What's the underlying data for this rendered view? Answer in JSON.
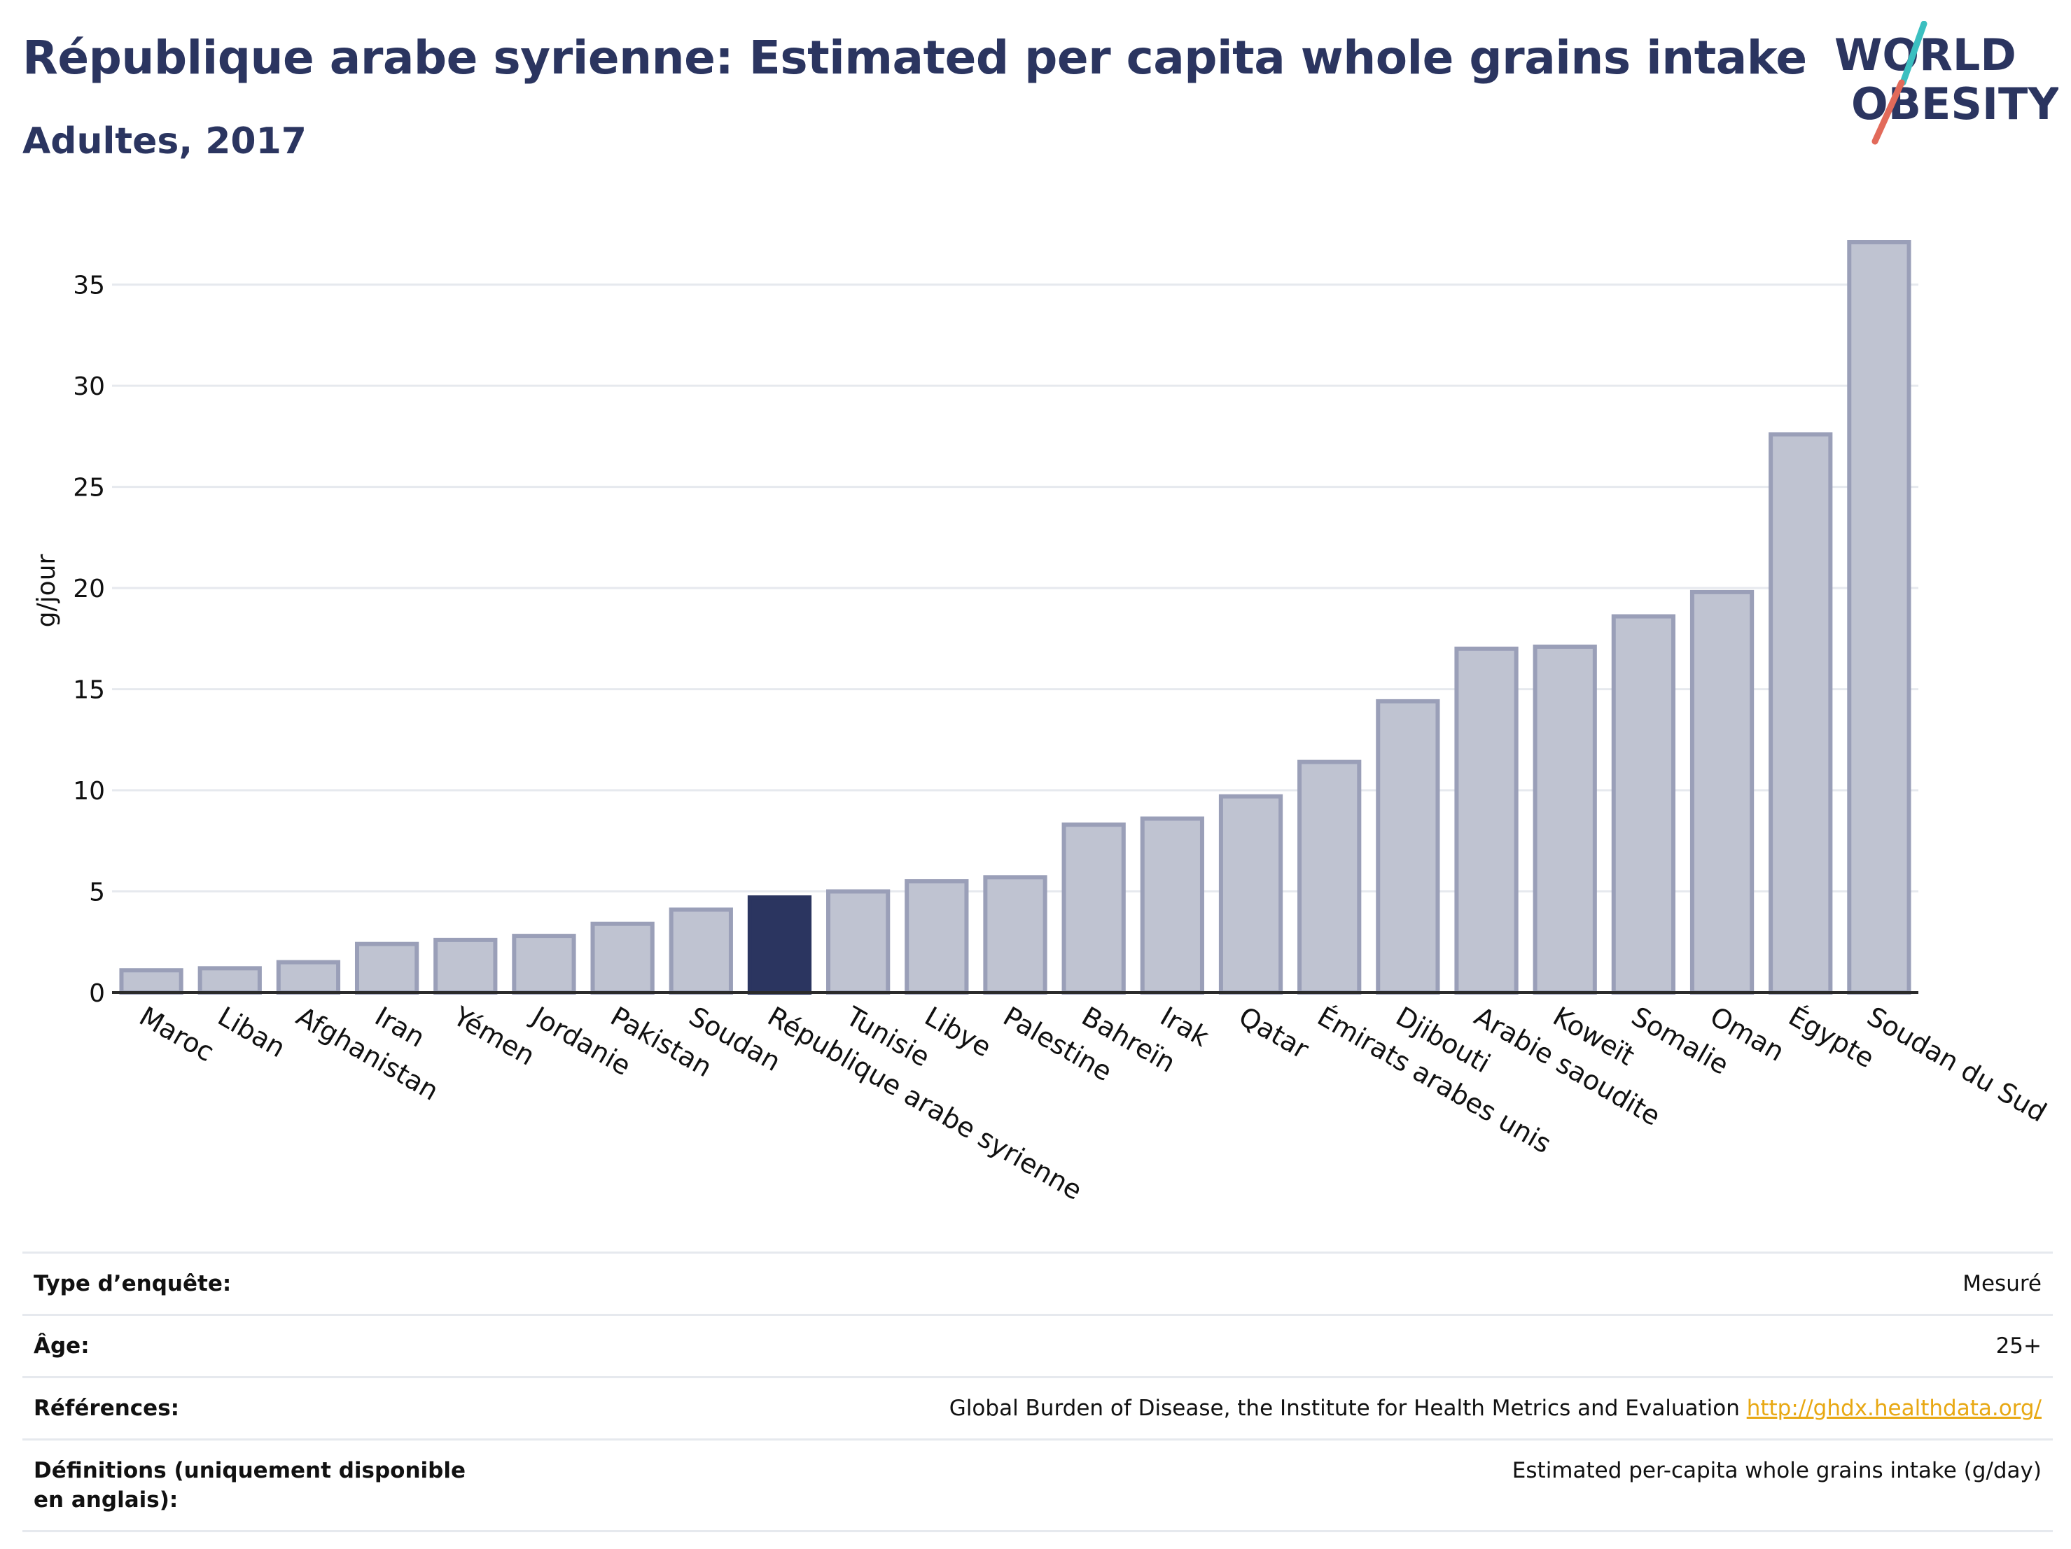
{
  "header": {
    "title": "République arabe syrienne: Estimated per capita whole grains intake",
    "subtitle": "Adultes, 2017"
  },
  "logo": {
    "line1": "WORLD",
    "line2": "OBESITY"
  },
  "colors": {
    "highlight": "#2b3560",
    "bar_fill": "#bfc3d1",
    "bar_stroke": "#9a9fb8",
    "grid": "#e6e9ee",
    "logo_text": "#2b3560",
    "logo_slash_teal": "#3bbfc0",
    "logo_slash_red": "#e26a5a",
    "link": "#e8a813"
  },
  "chart_data": {
    "type": "bar",
    "ylabel": "g/jour",
    "ylim": [
      0,
      38
    ],
    "yticks": [
      0,
      5,
      10,
      15,
      20,
      25,
      30,
      35
    ],
    "grid": true,
    "highlight": "République arabe syrienne",
    "categories": [
      "Maroc",
      "Liban",
      "Afghanistan",
      "Iran",
      "Yémen",
      "Jordanie",
      "Pakistan",
      "Soudan",
      "République arabe syrienne",
      "Tunisie",
      "Libye",
      "Palestine",
      "Bahreïn",
      "Irak",
      "Qatar",
      "Émirats arabes unis",
      "Djibouti",
      "Arabie saoudite",
      "Koweït",
      "Somalie",
      "Oman",
      "Égypte",
      "Soudan du Sud"
    ],
    "values": [
      1.1,
      1.2,
      1.5,
      2.4,
      2.6,
      2.8,
      3.4,
      4.1,
      4.7,
      5.0,
      5.5,
      5.7,
      8.3,
      8.6,
      9.7,
      11.4,
      14.4,
      17.0,
      17.1,
      18.6,
      19.8,
      27.6,
      37.1
    ]
  },
  "meta": {
    "rows": [
      {
        "label": "Type d’enquête:",
        "value": "Mesuré"
      },
      {
        "label": "Âge:",
        "value": "25+"
      },
      {
        "label": "Références:",
        "value": "Global Burden of Disease, the Institute for Health Metrics and Evaluation",
        "link": "http://ghdx.healthdata.org/"
      },
      {
        "label": "Définitions (uniquement disponible en anglais):",
        "value": "Estimated per-capita whole grains intake (g/day)"
      }
    ]
  }
}
